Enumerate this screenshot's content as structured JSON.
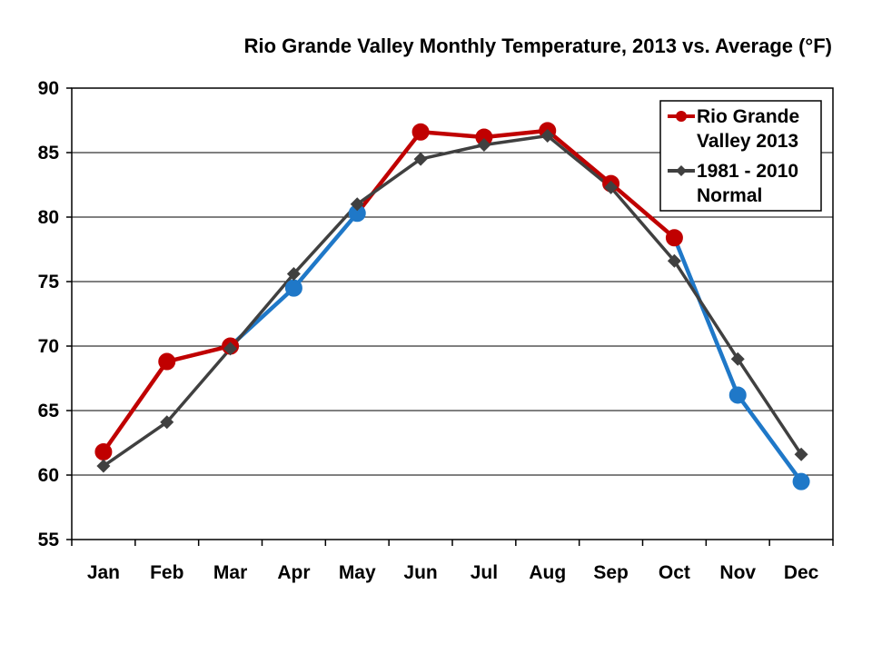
{
  "chart_data": {
    "type": "line",
    "title": "Rio Grande Valley Monthly Temperature, 2013 vs. Average (°F)",
    "xlabel": "",
    "ylabel": "",
    "categories": [
      "Jan",
      "Feb",
      "Mar",
      "Apr",
      "May",
      "Jun",
      "Jul",
      "Aug",
      "Sep",
      "Oct",
      "Nov",
      "Dec"
    ],
    "ylim": [
      55,
      90
    ],
    "yticks": [
      55,
      60,
      65,
      70,
      75,
      80,
      85,
      90
    ],
    "grid": true,
    "legend_position": "top-right",
    "series": [
      {
        "name": "Rio Grande Valley 2013",
        "legend_lines": [
          "Rio Grande",
          "Valley 2013"
        ],
        "values": [
          61.8,
          68.8,
          70.0,
          74.5,
          80.3,
          86.6,
          86.2,
          86.7,
          82.6,
          78.4,
          66.2,
          59.5
        ],
        "color": "#c00000",
        "below_normal_color": "#1f78c8",
        "marker": "circle"
      },
      {
        "name": "1981 - 2010 Normal",
        "legend_lines": [
          "1981 - 2010",
          "Normal"
        ],
        "values": [
          60.7,
          64.1,
          69.8,
          75.6,
          81.0,
          84.5,
          85.6,
          86.3,
          82.3,
          76.6,
          69.0,
          61.6
        ],
        "color": "#404040",
        "marker": "diamond"
      }
    ]
  }
}
